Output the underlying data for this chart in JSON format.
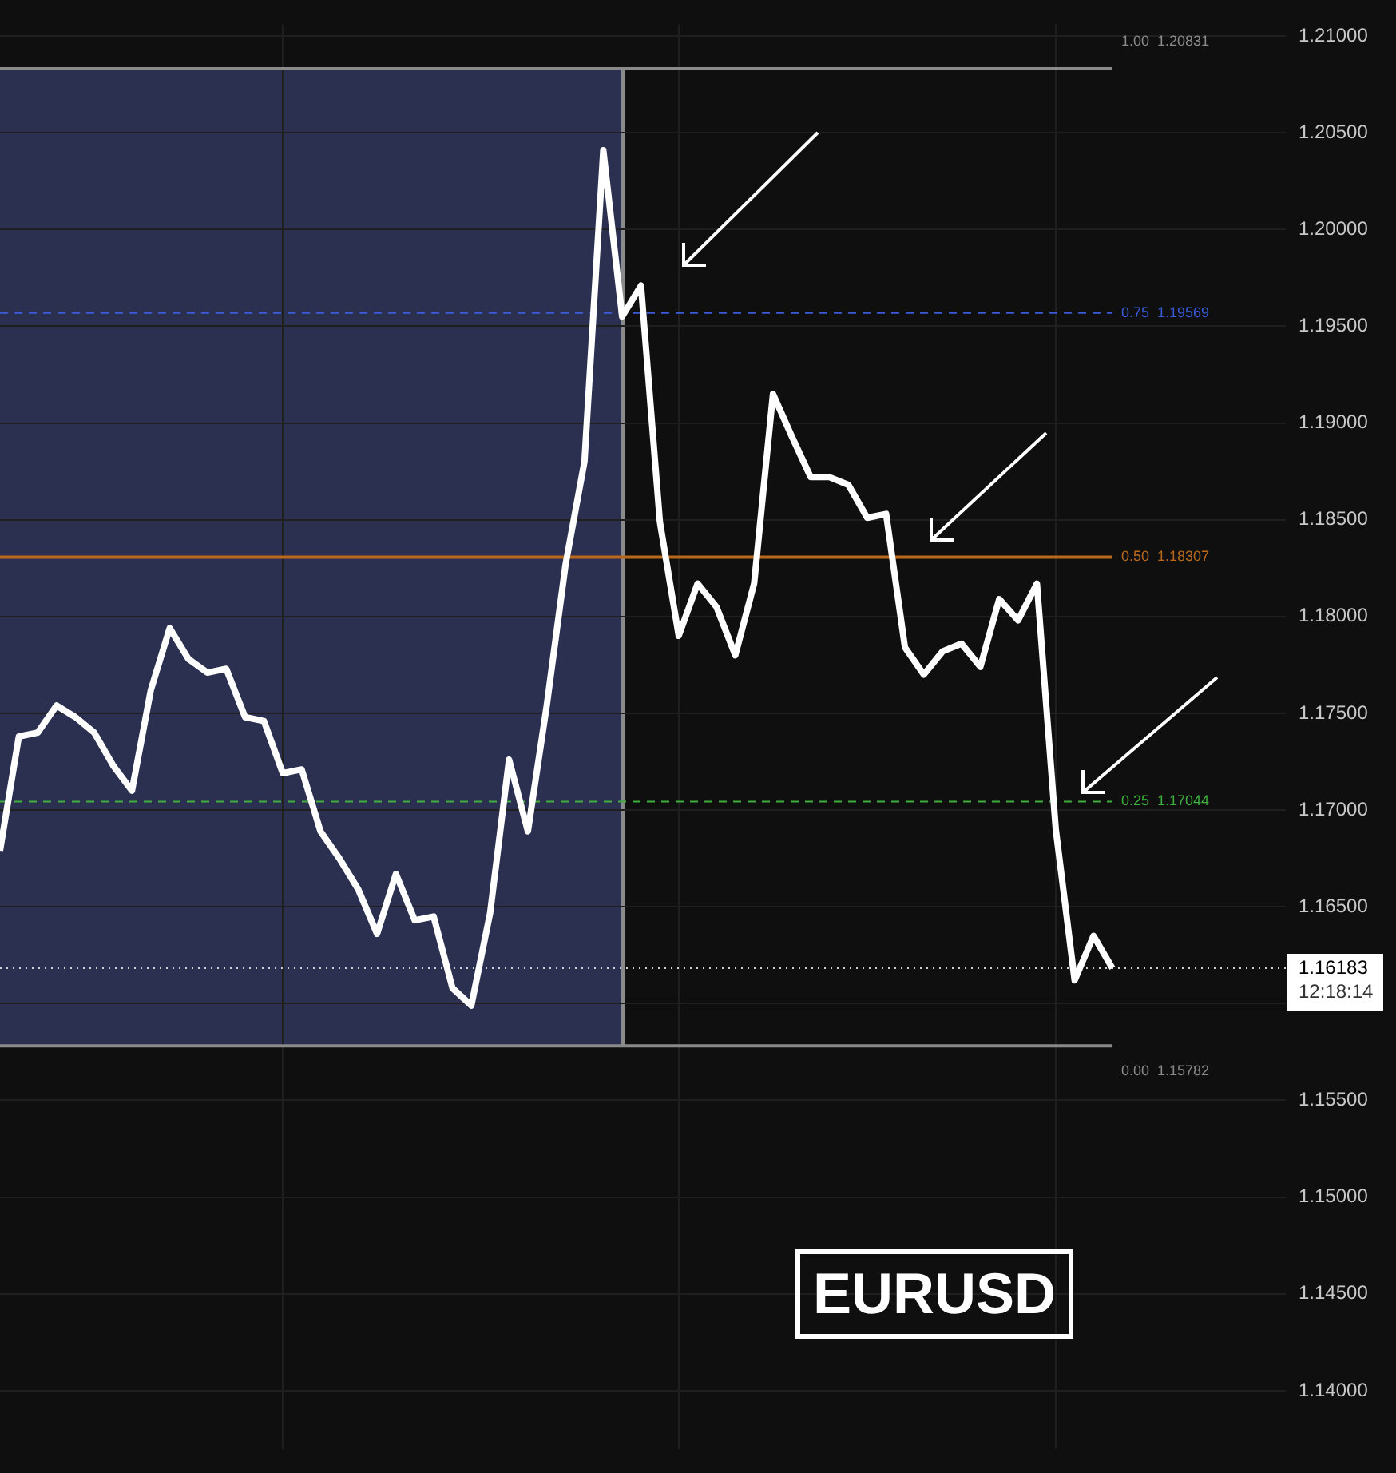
{
  "chart_data": {
    "type": "line",
    "categories": [
      null,
      null,
      null,
      null,
      null,
      null,
      null,
      null,
      null,
      null,
      null,
      null,
      null,
      null,
      null,
      null,
      null,
      null,
      null,
      null,
      null,
      null,
      null,
      null,
      null,
      null,
      null,
      null,
      null,
      null,
      null,
      null,
      null,
      null,
      null,
      null,
      null,
      null,
      null,
      null,
      null,
      null,
      null,
      null,
      null,
      null,
      null,
      null,
      null,
      null,
      null,
      null,
      null,
      null,
      null,
      null,
      null,
      null,
      null,
      null
    ],
    "series": [
      {
        "color": "#ffffff",
        "values": [
          1.1679,
          1.1738,
          1.174,
          1.1754,
          1.1748,
          1.174,
          1.1723,
          1.171,
          1.1762,
          1.1794,
          1.1778,
          1.1771,
          1.1773,
          1.1748,
          1.1746,
          1.1719,
          1.1721,
          1.1689,
          1.1675,
          1.1659,
          1.1636,
          1.1667,
          1.1643,
          1.1645,
          1.1608,
          1.1599,
          1.1647,
          1.1726,
          1.1689,
          1.1754,
          1.1827,
          1.188,
          1.2041,
          1.1955,
          1.1971,
          1.1849,
          1.179,
          1.1817,
          1.1805,
          1.178,
          1.1817,
          1.1915,
          1.1893,
          1.1872,
          1.1872,
          1.1868,
          1.1851,
          1.1853,
          1.1784,
          1.177,
          1.1782,
          1.1786,
          1.1774,
          1.1809,
          1.1798,
          1.1817,
          1.169,
          1.1612,
          1.1635,
          1.16183
        ]
      }
    ],
    "ylim": [
      1.137,
      1.2106
    ],
    "yticks": [
      {
        "value": 1.14,
        "label": "1.14000"
      },
      {
        "value": 1.145,
        "label": "1.14500"
      },
      {
        "value": 1.15,
        "label": "1.15000"
      },
      {
        "value": 1.155,
        "label": "1.15500"
      },
      {
        "value": 1.16,
        "label": null
      },
      {
        "value": 1.165,
        "label": "1.16500"
      },
      {
        "value": 1.17,
        "label": "1.17000"
      },
      {
        "value": 1.175,
        "label": "1.17500"
      },
      {
        "value": 1.18,
        "label": "1.18000"
      },
      {
        "value": 1.185,
        "label": "1.18500"
      },
      {
        "value": 1.19,
        "label": "1.19000"
      },
      {
        "value": 1.195,
        "label": "1.19500"
      },
      {
        "value": 1.2,
        "label": "1.20000"
      },
      {
        "value": 1.205,
        "label": "1.20500"
      },
      {
        "value": 1.21,
        "label": "1.21000"
      }
    ],
    "tick_labels": "y",
    "grid": true,
    "legend": false,
    "marker": "none",
    "line_style": "solid",
    "ref_lines": [
      {
        "axis": "y",
        "value": 1.20831,
        "label": "1.00  1.20831",
        "color": "#8a8a8a",
        "line_style": "solid"
      },
      {
        "axis": "y",
        "value": 1.19569,
        "label": "0.75  1.19569",
        "color": "#3b5bdb",
        "line_style": "dashed"
      },
      {
        "axis": "y",
        "value": 1.18307,
        "label": "0.50  1.18307",
        "color": "#b8691c",
        "line_style": "solid"
      },
      {
        "axis": "y",
        "value": 1.17044,
        "label": "0.25  1.17044",
        "color": "#3fae3f",
        "line_style": "dashed"
      },
      {
        "axis": "y",
        "value": 1.15782,
        "label": "0.00  1.15782",
        "color": "#8a8a8a",
        "line_style": "solid"
      },
      {
        "axis": "y",
        "value": 1.16183,
        "label": "1.16183",
        "color": "#d0d0d0",
        "line_style": "dotted"
      }
    ],
    "annotations": [
      "12:18:14",
      "EURUSD"
    ]
  }
}
